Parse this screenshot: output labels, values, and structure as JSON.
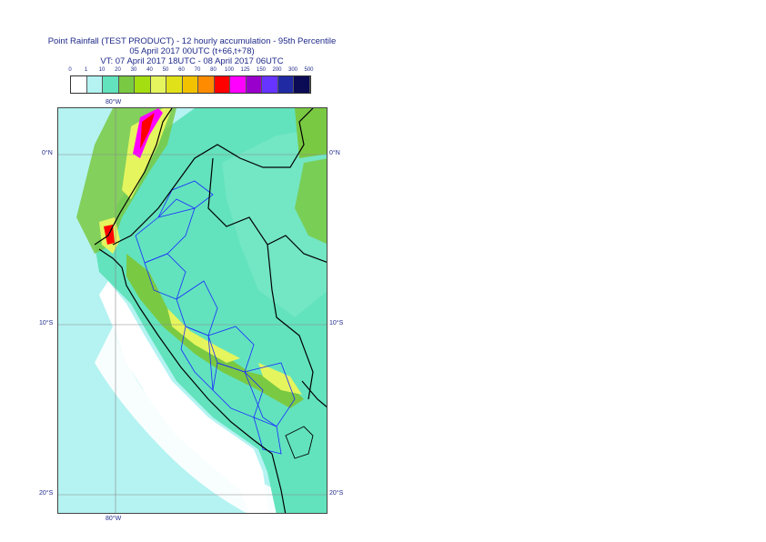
{
  "title": {
    "line1": "Point Rainfall (TEST PRODUCT) - 12 hourly accumulation - 95th Percentile",
    "line2": "05 April 2017 00UTC (t+66,t+78)",
    "line3": "VT: 07 April 2017 18UTC - 08 April 2017 06UTC"
  },
  "legend": {
    "labels": [
      "0",
      "1",
      "10",
      "20",
      "30",
      "40",
      "50",
      "60",
      "70",
      "80",
      "100",
      "125",
      "150",
      "200",
      "300",
      "500"
    ],
    "colors": [
      "#ffffff",
      "#b4f3f2",
      "#62e3bd",
      "#7ac943",
      "#a5de10",
      "#e5f55d",
      "#e1e119",
      "#f2c200",
      "#ff8c00",
      "#ff0000",
      "#ff00ff",
      "#9900cc",
      "#6633ff",
      "#1f2aa3",
      "#0a0a55"
    ]
  },
  "map": {
    "lat_labels": [
      "0°N",
      "10°S",
      "20°S"
    ],
    "lon_label": "80°W",
    "colors": {
      "sea": "#b4f3f2",
      "dry": "#ffffff",
      "light": "#62e3bd",
      "moderate": "#7ac943",
      "heavy": "#e5f55d",
      "very_heavy": "#f2c200",
      "extreme": "#ff0000",
      "magenta": "#ff00ff",
      "border": "#000000",
      "admin": "#1a2aff"
    }
  }
}
